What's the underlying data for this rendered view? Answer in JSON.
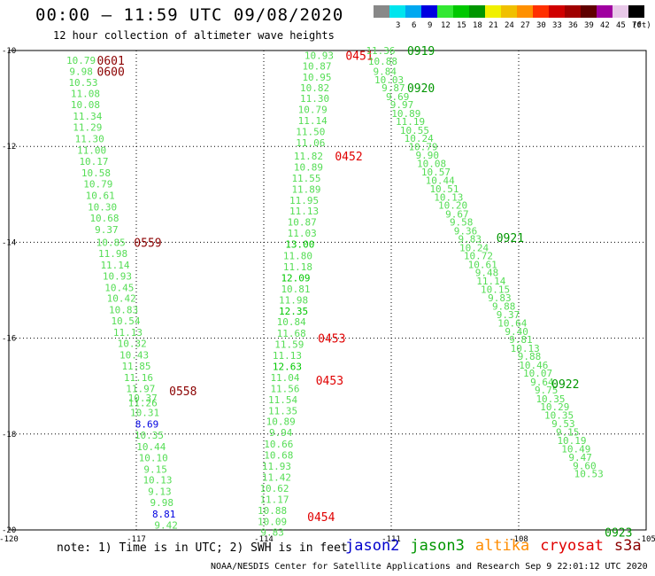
{
  "header": {
    "title": "00:00 – 11:59 UTC 09/08/2020",
    "subtitle": "12 hour collection of altimeter wave heights"
  },
  "color_scale": {
    "unit": "(ft)",
    "swatches": [
      {
        "label": "",
        "color": "#888888"
      },
      {
        "label": "3",
        "color": "#00e5ee"
      },
      {
        "label": "6",
        "color": "#00a8f0"
      },
      {
        "label": "9",
        "color": "#0000e0"
      },
      {
        "label": "12",
        "color": "#33e833"
      },
      {
        "label": "15",
        "color": "#00c800"
      },
      {
        "label": "18",
        "color": "#009600"
      },
      {
        "label": "21",
        "color": "#f0f000"
      },
      {
        "label": "24",
        "color": "#f0c000"
      },
      {
        "label": "27",
        "color": "#ff9000"
      },
      {
        "label": "30",
        "color": "#ff3000"
      },
      {
        "label": "33",
        "color": "#d00000"
      },
      {
        "label": "36",
        "color": "#a00000"
      },
      {
        "label": "39",
        "color": "#600000"
      },
      {
        "label": "42",
        "color": "#a000a0"
      },
      {
        "label": "45",
        "color": "#e8c8e8"
      },
      {
        "label": "70",
        "color": "#000000"
      }
    ]
  },
  "note": "note: 1) Time is in UTC; 2) SWH is in feet",
  "satellites": [
    {
      "name": "jason2",
      "color": "#0000cc"
    },
    {
      "name": "jason3",
      "color": "#009600"
    },
    {
      "name": "altika",
      "color": "#ff8c00"
    },
    {
      "name": "cryosat",
      "color": "#e00000"
    },
    {
      "name": "s3a",
      "color": "#8b0000"
    }
  ],
  "footer": "NOAA/NESDIS Center for Satellite Applications and Research    Sep  9 22:01:12 UTC 2020",
  "chart_data": {
    "type": "scatter",
    "xlim": [
      -120,
      -105
    ],
    "ylim": [
      -20,
      -10
    ],
    "x_ticks": [
      "-120",
      "-117",
      "-114",
      "-111",
      "-108",
      "-105"
    ],
    "y_ticks": [
      "-10",
      "-12",
      "-14",
      "-16",
      "-18",
      "-20"
    ],
    "grid": true,
    "tracks": [
      {
        "satellite": "s3a",
        "times": [
          {
            "label": "0601",
            "x": -117.6,
            "y": -10.2
          },
          {
            "label": "0600",
            "x": -117.6,
            "y": -10.43
          },
          {
            "label": "0559",
            "x": -116.73,
            "y": -14.0
          },
          {
            "label": "0558",
            "x": -115.9,
            "y": -17.1
          }
        ],
        "points": [
          {
            "x": -118.3,
            "y": -10.2,
            "v": "10.79"
          },
          {
            "x": -118.3,
            "y": -10.43,
            "v": "9.98"
          },
          {
            "x": -118.25,
            "y": -10.67,
            "v": "10.53"
          },
          {
            "x": -118.2,
            "y": -10.9,
            "v": "11.08"
          },
          {
            "x": -118.2,
            "y": -11.13,
            "v": "10.08"
          },
          {
            "x": -118.15,
            "y": -11.37,
            "v": "11.34"
          },
          {
            "x": -118.15,
            "y": -11.6,
            "v": "11.29"
          },
          {
            "x": -118.1,
            "y": -11.84,
            "v": "11.30"
          },
          {
            "x": -118.05,
            "y": -12.08,
            "v": "11.00"
          },
          {
            "x": -118.0,
            "y": -12.31,
            "v": "10.17"
          },
          {
            "x": -117.95,
            "y": -12.55,
            "v": "10.58"
          },
          {
            "x": -117.9,
            "y": -12.78,
            "v": "10.79"
          },
          {
            "x": -117.85,
            "y": -13.02,
            "v": "10.61"
          },
          {
            "x": -117.8,
            "y": -13.26,
            "v": "10.30"
          },
          {
            "x": -117.75,
            "y": -13.49,
            "v": "10.68"
          },
          {
            "x": -117.7,
            "y": -13.73,
            "v": "9.37"
          },
          {
            "x": -117.6,
            "y": -14.0,
            "v": "10.85"
          },
          {
            "x": -117.55,
            "y": -14.23,
            "v": "11.98"
          },
          {
            "x": -117.5,
            "y": -14.47,
            "v": "11.14"
          },
          {
            "x": -117.45,
            "y": -14.7,
            "v": "10.93"
          },
          {
            "x": -117.4,
            "y": -14.94,
            "v": "10.45"
          },
          {
            "x": -117.35,
            "y": -15.17,
            "v": "10.42"
          },
          {
            "x": -117.3,
            "y": -15.41,
            "v": "10.83"
          },
          {
            "x": -117.25,
            "y": -15.64,
            "v": "10.54"
          },
          {
            "x": -117.2,
            "y": -15.88,
            "v": "11.13"
          },
          {
            "x": -117.1,
            "y": -16.11,
            "v": "10.32"
          },
          {
            "x": -117.05,
            "y": -16.35,
            "v": "10.43"
          },
          {
            "x": -117.0,
            "y": -16.58,
            "v": "11.85"
          },
          {
            "x": -116.95,
            "y": -16.82,
            "v": "11.16"
          },
          {
            "x": -116.9,
            "y": -17.05,
            "v": "11.97"
          },
          {
            "x": -116.85,
            "y": -17.25,
            "v": "10.37"
          },
          {
            "x": -116.85,
            "y": -17.35,
            "v": "11.26"
          },
          {
            "x": -116.8,
            "y": -17.55,
            "v": "10.31"
          },
          {
            "x": -116.75,
            "y": -17.79,
            "v": "8.69"
          },
          {
            "x": -116.7,
            "y": -18.02,
            "v": "10.35"
          },
          {
            "x": -116.65,
            "y": -18.26,
            "v": "10.44"
          },
          {
            "x": -116.6,
            "y": -18.49,
            "v": "10.10"
          },
          {
            "x": -116.55,
            "y": -18.73,
            "v": "9.15"
          },
          {
            "x": -116.5,
            "y": -18.96,
            "v": "10.13"
          },
          {
            "x": -116.45,
            "y": -19.2,
            "v": "9.13"
          },
          {
            "x": -116.4,
            "y": -19.43,
            "v": "9.98"
          },
          {
            "x": -116.35,
            "y": -19.67,
            "v": "8.81"
          },
          {
            "x": -116.3,
            "y": -19.9,
            "v": "9.42"
          }
        ]
      },
      {
        "satellite": "cryosat",
        "times": [
          {
            "label": "0451",
            "x": -111.75,
            "y": -10.1
          },
          {
            "label": "0452",
            "x": -112.0,
            "y": -12.2
          },
          {
            "label": "0453",
            "x": -112.4,
            "y": -16.0
          },
          {
            "label": "0453",
            "x": -112.45,
            "y": -16.88
          },
          {
            "label": "0454",
            "x": -112.65,
            "y": -19.72
          }
        ],
        "points": [
          {
            "x": -112.7,
            "y": -10.1,
            "v": "10.93"
          },
          {
            "x": -112.75,
            "y": -10.32,
            "v": "10.87"
          },
          {
            "x": -112.75,
            "y": -10.55,
            "v": "10.95"
          },
          {
            "x": -112.8,
            "y": -10.78,
            "v": "10.82"
          },
          {
            "x": -112.8,
            "y": -11.0,
            "v": "11.30"
          },
          {
            "x": -112.85,
            "y": -11.23,
            "v": "10.79"
          },
          {
            "x": -112.85,
            "y": -11.46,
            "v": "11.14"
          },
          {
            "x": -112.9,
            "y": -11.69,
            "v": "11.50"
          },
          {
            "x": -112.9,
            "y": -11.92,
            "v": "11.06"
          },
          {
            "x": -112.95,
            "y": -12.2,
            "v": "11.82"
          },
          {
            "x": -112.95,
            "y": -12.43,
            "v": "10.89"
          },
          {
            "x": -113.0,
            "y": -12.66,
            "v": "11.55"
          },
          {
            "x": -113.0,
            "y": -12.89,
            "v": "11.89"
          },
          {
            "x": -113.05,
            "y": -13.12,
            "v": "11.95"
          },
          {
            "x": -113.05,
            "y": -13.35,
            "v": "11.13"
          },
          {
            "x": -113.1,
            "y": -13.58,
            "v": "10.87"
          },
          {
            "x": -113.1,
            "y": -13.81,
            "v": "11.03"
          },
          {
            "x": -113.15,
            "y": -14.04,
            "v": "13.00"
          },
          {
            "x": -113.2,
            "y": -14.28,
            "v": "11.80"
          },
          {
            "x": -113.2,
            "y": -14.51,
            "v": "11.18"
          },
          {
            "x": -113.25,
            "y": -14.74,
            "v": "12.09"
          },
          {
            "x": -113.25,
            "y": -14.97,
            "v": "10.81"
          },
          {
            "x": -113.3,
            "y": -15.2,
            "v": "11.98"
          },
          {
            "x": -113.3,
            "y": -15.43,
            "v": "12.35"
          },
          {
            "x": -113.35,
            "y": -15.66,
            "v": "10.84"
          },
          {
            "x": -113.35,
            "y": -15.9,
            "v": "11.68"
          },
          {
            "x": -113.4,
            "y": -16.13,
            "v": "11.59"
          },
          {
            "x": -113.45,
            "y": -16.36,
            "v": "11.13"
          },
          {
            "x": -113.45,
            "y": -16.59,
            "v": "12.63"
          },
          {
            "x": -113.5,
            "y": -16.82,
            "v": "11.04"
          },
          {
            "x": -113.5,
            "y": -17.05,
            "v": "11.56"
          },
          {
            "x": -113.55,
            "y": -17.28,
            "v": "11.54"
          },
          {
            "x": -113.55,
            "y": -17.51,
            "v": "11.35"
          },
          {
            "x": -113.6,
            "y": -17.74,
            "v": "10.89"
          },
          {
            "x": -113.6,
            "y": -17.97,
            "v": "9.94"
          },
          {
            "x": -113.65,
            "y": -18.21,
            "v": "10.66"
          },
          {
            "x": -113.65,
            "y": -18.44,
            "v": "10.68"
          },
          {
            "x": -113.7,
            "y": -18.67,
            "v": "11.93"
          },
          {
            "x": -113.7,
            "y": -18.9,
            "v": "11.42"
          },
          {
            "x": -113.75,
            "y": -19.13,
            "v": "10.62"
          },
          {
            "x": -113.75,
            "y": -19.36,
            "v": "11.17"
          },
          {
            "x": -113.8,
            "y": -19.59,
            "v": "10.88"
          },
          {
            "x": -113.8,
            "y": -19.82,
            "v": "10.09"
          },
          {
            "x": -113.8,
            "y": -20.05,
            "v": "9.83"
          }
        ]
      },
      {
        "satellite": "jason3",
        "times": [
          {
            "label": "0919",
            "x": -110.3,
            "y": -10.0
          },
          {
            "label": "0920",
            "x": -110.3,
            "y": -10.78
          },
          {
            "label": "0921",
            "x": -108.2,
            "y": -13.9
          },
          {
            "label": "0922",
            "x": -106.9,
            "y": -16.95
          },
          {
            "label": "0923",
            "x": -105.65,
            "y": -20.05
          }
        ],
        "points": [
          {
            "x": -111.25,
            "y": -10.0,
            "v": "11.36"
          },
          {
            "x": -111.2,
            "y": -10.22,
            "v": "10.88"
          },
          {
            "x": -111.15,
            "y": -10.43,
            "v": "9.84"
          },
          {
            "x": -111.05,
            "y": -10.61,
            "v": "10.03"
          },
          {
            "x": -110.95,
            "y": -10.78,
            "v": "9.87"
          },
          {
            "x": -110.85,
            "y": -10.96,
            "v": "9.69"
          },
          {
            "x": -110.75,
            "y": -11.13,
            "v": "9.97"
          },
          {
            "x": -110.65,
            "y": -11.31,
            "v": "10.89"
          },
          {
            "x": -110.55,
            "y": -11.48,
            "v": "11.19"
          },
          {
            "x": -110.45,
            "y": -11.66,
            "v": "10.55"
          },
          {
            "x": -110.35,
            "y": -11.83,
            "v": "10.24"
          },
          {
            "x": -110.25,
            "y": -12.01,
            "v": "10.79"
          },
          {
            "x": -110.15,
            "y": -12.18,
            "v": "9.90"
          },
          {
            "x": -110.05,
            "y": -12.36,
            "v": "10.08"
          },
          {
            "x": -109.95,
            "y": -12.53,
            "v": "10.57"
          },
          {
            "x": -109.85,
            "y": -12.71,
            "v": "10.44"
          },
          {
            "x": -109.75,
            "y": -12.88,
            "v": "10.51"
          },
          {
            "x": -109.65,
            "y": -13.06,
            "v": "10.13"
          },
          {
            "x": -109.55,
            "y": -13.23,
            "v": "10.20"
          },
          {
            "x": -109.45,
            "y": -13.41,
            "v": "9.67"
          },
          {
            "x": -109.35,
            "y": -13.58,
            "v": "9.58"
          },
          {
            "x": -109.25,
            "y": -13.76,
            "v": "9.36"
          },
          {
            "x": -109.15,
            "y": -13.93,
            "v": "9.83"
          },
          {
            "x": -109.05,
            "y": -14.11,
            "v": "10.24"
          },
          {
            "x": -108.95,
            "y": -14.28,
            "v": "10.72"
          },
          {
            "x": -108.85,
            "y": -14.46,
            "v": "10.61"
          },
          {
            "x": -108.75,
            "y": -14.63,
            "v": "9.48"
          },
          {
            "x": -108.65,
            "y": -14.81,
            "v": "11.14"
          },
          {
            "x": -108.55,
            "y": -14.98,
            "v": "10.15"
          },
          {
            "x": -108.45,
            "y": -15.16,
            "v": "9.83"
          },
          {
            "x": -108.35,
            "y": -15.33,
            "v": "9.88"
          },
          {
            "x": -108.25,
            "y": -15.51,
            "v": "9.37"
          },
          {
            "x": -108.15,
            "y": -15.68,
            "v": "10.64"
          },
          {
            "x": -108.05,
            "y": -15.86,
            "v": "9.40"
          },
          {
            "x": -107.95,
            "y": -16.03,
            "v": "9.81"
          },
          {
            "x": -107.85,
            "y": -16.21,
            "v": "10.13"
          },
          {
            "x": -107.75,
            "y": -16.38,
            "v": "9.88"
          },
          {
            "x": -107.65,
            "y": -16.56,
            "v": "10.46"
          },
          {
            "x": -107.55,
            "y": -16.73,
            "v": "10.07"
          },
          {
            "x": -107.45,
            "y": -16.91,
            "v": "9.64"
          },
          {
            "x": -107.35,
            "y": -17.08,
            "v": "9.75"
          },
          {
            "x": -107.25,
            "y": -17.26,
            "v": "10.35"
          },
          {
            "x": -107.15,
            "y": -17.43,
            "v": "10.29"
          },
          {
            "x": -107.05,
            "y": -17.61,
            "v": "10.35"
          },
          {
            "x": -106.95,
            "y": -17.78,
            "v": "9.53"
          },
          {
            "x": -106.85,
            "y": -17.96,
            "v": "9.15"
          },
          {
            "x": -106.75,
            "y": -18.13,
            "v": "10.19"
          },
          {
            "x": -106.65,
            "y": -18.31,
            "v": "10.49"
          },
          {
            "x": -106.55,
            "y": -18.48,
            "v": "9.47"
          },
          {
            "x": -106.45,
            "y": -18.66,
            "v": "9.60"
          },
          {
            "x": -106.35,
            "y": -18.83,
            "v": "10.53"
          }
        ]
      }
    ]
  }
}
